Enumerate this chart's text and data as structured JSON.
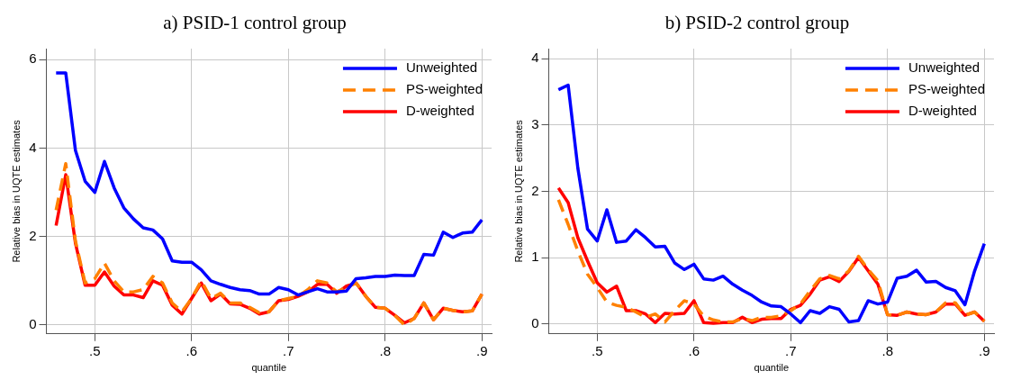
{
  "chart_data": [
    {
      "type": "line",
      "title": "a) PSID-1 control group",
      "xlabel": "quantile",
      "ylabel": "Relative bias in UQTE estimates",
      "x": [
        0.46,
        0.47,
        0.48,
        0.49,
        0.5,
        0.51,
        0.52,
        0.53,
        0.54,
        0.55,
        0.56,
        0.57,
        0.58,
        0.59,
        0.6,
        0.61,
        0.62,
        0.63,
        0.64,
        0.65,
        0.66,
        0.67,
        0.68,
        0.69,
        0.7,
        0.71,
        0.72,
        0.73,
        0.74,
        0.75,
        0.76,
        0.77,
        0.78,
        0.79,
        0.8,
        0.81,
        0.82,
        0.83,
        0.84,
        0.85,
        0.86,
        0.87,
        0.88,
        0.89,
        0.9
      ],
      "series": [
        {
          "name": "Unweighted",
          "color": "#0000ff",
          "line_style": "solid",
          "values": [
            5.7,
            5.7,
            3.95,
            3.25,
            3.0,
            3.7,
            3.1,
            2.65,
            2.4,
            2.2,
            2.15,
            1.95,
            1.45,
            1.42,
            1.42,
            1.25,
            1.0,
            0.92,
            0.85,
            0.8,
            0.78,
            0.7,
            0.7,
            0.85,
            0.8,
            0.68,
            0.75,
            0.82,
            0.75,
            0.75,
            0.77,
            1.05,
            1.07,
            1.1,
            1.1,
            1.13,
            1.12,
            1.12,
            1.6,
            1.58,
            2.1,
            1.98,
            2.08,
            2.1,
            2.38
          ]
        },
        {
          "name": "PS-weighted",
          "color": "#ff8000",
          "line_style": "dashed",
          "values": [
            2.6,
            3.65,
            1.9,
            0.95,
            1.05,
            1.4,
            1.0,
            0.75,
            0.75,
            0.8,
            1.1,
            0.95,
            0.5,
            0.3,
            0.6,
            1.0,
            0.6,
            0.72,
            0.5,
            0.5,
            0.4,
            0.28,
            0.3,
            0.55,
            0.6,
            0.65,
            0.8,
            1.0,
            0.95,
            0.75,
            0.85,
            0.95,
            0.65,
            0.4,
            0.38,
            0.22,
            0.0,
            0.15,
            0.5,
            0.12,
            0.38,
            0.33,
            0.3,
            0.32,
            0.7
          ]
        },
        {
          "name": "D-weighted",
          "color": "#ff0000",
          "line_style": "solid",
          "values": [
            2.25,
            3.4,
            1.85,
            0.9,
            0.9,
            1.2,
            0.88,
            0.68,
            0.68,
            0.62,
            1.0,
            0.9,
            0.45,
            0.25,
            0.6,
            0.95,
            0.55,
            0.7,
            0.48,
            0.47,
            0.38,
            0.25,
            0.3,
            0.55,
            0.58,
            0.65,
            0.75,
            0.92,
            0.92,
            0.72,
            0.88,
            0.95,
            0.65,
            0.4,
            0.38,
            0.22,
            0.05,
            0.15,
            0.5,
            0.12,
            0.38,
            0.33,
            0.3,
            0.32,
            0.7
          ]
        }
      ],
      "xlim": [
        0.45,
        0.91
      ],
      "xticks": [
        {
          "value": 0.5,
          "label": ".5"
        },
        {
          "value": 0.6,
          "label": ".6"
        },
        {
          "value": 0.7,
          "label": ".7"
        },
        {
          "value": 0.8,
          "label": ".8"
        },
        {
          "value": 0.9,
          "label": ".9"
        }
      ],
      "ylim": [
        -0.2,
        6.25
      ],
      "yticks": [
        0,
        2,
        4,
        6
      ],
      "grid": true,
      "legend": "top right",
      "marker": "none"
    },
    {
      "type": "line",
      "title": "b) PSID-2 control group",
      "xlabel": "quantile",
      "ylabel": "Relative bias in UQTE estimates",
      "x": [
        0.46,
        0.47,
        0.48,
        0.49,
        0.5,
        0.51,
        0.52,
        0.53,
        0.54,
        0.55,
        0.56,
        0.57,
        0.58,
        0.59,
        0.6,
        0.61,
        0.62,
        0.63,
        0.64,
        0.65,
        0.66,
        0.67,
        0.68,
        0.69,
        0.7,
        0.71,
        0.72,
        0.73,
        0.74,
        0.75,
        0.76,
        0.77,
        0.78,
        0.79,
        0.8,
        0.81,
        0.82,
        0.83,
        0.84,
        0.85,
        0.86,
        0.87,
        0.88,
        0.89,
        0.9
      ],
      "series": [
        {
          "name": "Unweighted",
          "color": "#0000ff",
          "line_style": "solid",
          "values": [
            3.53,
            3.6,
            2.35,
            1.43,
            1.25,
            1.72,
            1.23,
            1.25,
            1.42,
            1.3,
            1.16,
            1.17,
            0.92,
            0.82,
            0.9,
            0.68,
            0.66,
            0.72,
            0.6,
            0.51,
            0.43,
            0.33,
            0.27,
            0.26,
            0.15,
            0.02,
            0.2,
            0.16,
            0.26,
            0.22,
            0.03,
            0.05,
            0.35,
            0.3,
            0.33,
            0.69,
            0.72,
            0.81,
            0.63,
            0.64,
            0.55,
            0.5,
            0.29,
            0.8,
            1.21
          ]
        },
        {
          "name": "PS-weighted",
          "color": "#ff8000",
          "line_style": "dashed",
          "values": [
            1.87,
            1.5,
            1.1,
            0.75,
            0.55,
            0.33,
            0.28,
            0.25,
            0.18,
            0.1,
            0.15,
            0.03,
            0.2,
            0.35,
            0.3,
            0.12,
            0.06,
            0.03,
            0.03,
            0.08,
            0.05,
            0.1,
            0.1,
            0.12,
            0.2,
            0.3,
            0.5,
            0.68,
            0.73,
            0.68,
            0.8,
            1.02,
            0.82,
            0.65,
            0.14,
            0.13,
            0.18,
            0.15,
            0.14,
            0.18,
            0.32,
            0.32,
            0.13,
            0.18,
            0.04
          ]
        },
        {
          "name": "D-weighted",
          "color": "#ff0000",
          "line_style": "solid",
          "values": [
            2.05,
            1.83,
            1.3,
            0.95,
            0.62,
            0.48,
            0.57,
            0.2,
            0.2,
            0.15,
            0.02,
            0.16,
            0.15,
            0.16,
            0.35,
            0.02,
            0.01,
            0.02,
            0.02,
            0.1,
            0.02,
            0.07,
            0.08,
            0.08,
            0.22,
            0.28,
            0.45,
            0.66,
            0.71,
            0.64,
            0.79,
            1.0,
            0.8,
            0.6,
            0.14,
            0.13,
            0.18,
            0.15,
            0.14,
            0.18,
            0.3,
            0.3,
            0.13,
            0.18,
            0.04
          ]
        }
      ],
      "xlim": [
        0.45,
        0.91
      ],
      "xticks": [
        {
          "value": 0.5,
          "label": ".5"
        },
        {
          "value": 0.6,
          "label": ".6"
        },
        {
          "value": 0.7,
          "label": ".7"
        },
        {
          "value": 0.8,
          "label": ".8"
        },
        {
          "value": 0.9,
          "label": ".9"
        }
      ],
      "ylim": [
        -0.15,
        4.15
      ],
      "yticks": [
        0,
        1,
        2,
        3,
        4
      ],
      "grid": true,
      "legend": "top right",
      "marker": "none"
    }
  ]
}
